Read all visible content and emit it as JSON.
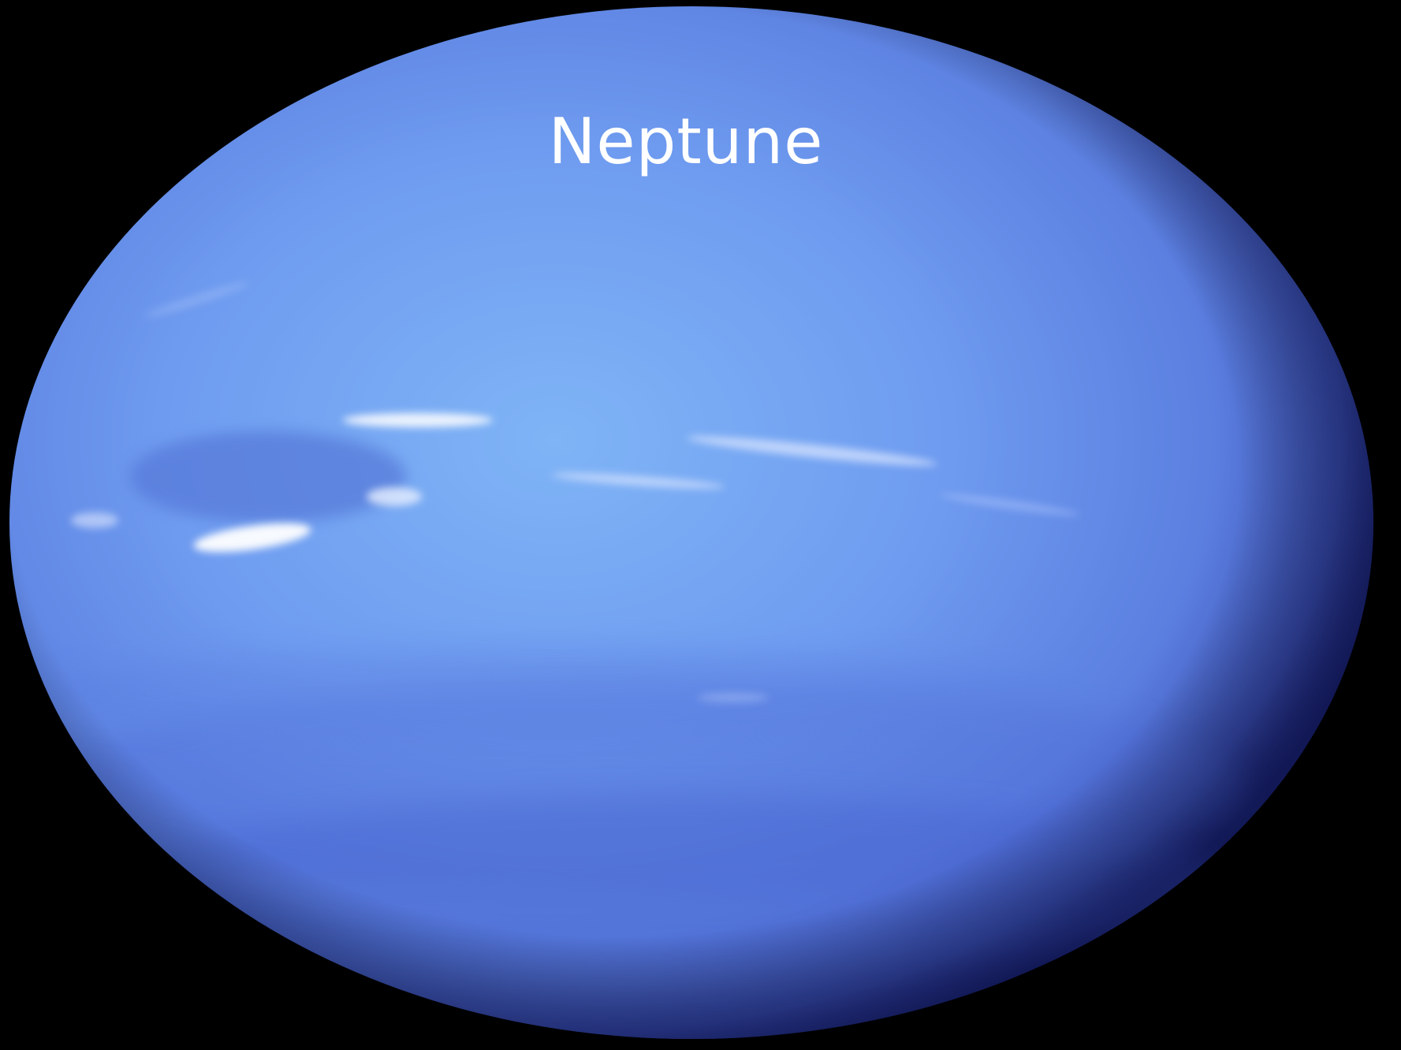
{
  "slide": {
    "title": "Neptune"
  },
  "colors": {
    "background": "#000000",
    "planet_light": "#7fb0f5",
    "planet_mid": "#6a92ea",
    "planet_dark": "#2a3a9a",
    "title_text": "#ffffff"
  }
}
